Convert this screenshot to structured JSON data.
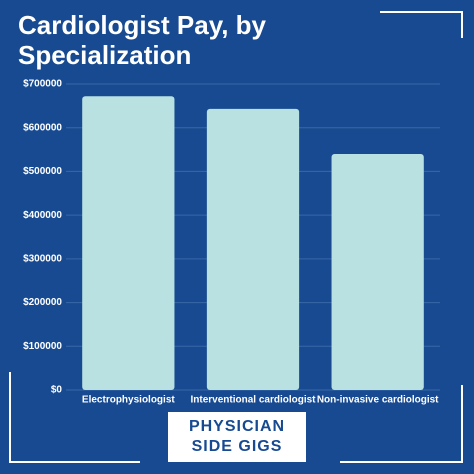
{
  "chart_data": {
    "type": "bar",
    "title": "Cardiologist Pay, by Specialization",
    "categories": [
      "Electrophysiologist",
      "Interventional cardiologist",
      "Non-invasive cardiologist"
    ],
    "values": [
      672000,
      643000,
      540000
    ],
    "color": "#b9e1e1",
    "ylim": [
      0,
      700000
    ],
    "yticks": [
      {
        "value": 0,
        "label": "$0"
      },
      {
        "value": 100000,
        "label": "$100000"
      },
      {
        "value": 200000,
        "label": "$200000"
      },
      {
        "value": 300000,
        "label": "$300000"
      },
      {
        "value": 400000,
        "label": "$400000"
      },
      {
        "value": 500000,
        "label": "$500000"
      },
      {
        "value": 600000,
        "label": "$600000"
      },
      {
        "value": 700000,
        "label": "$700000"
      }
    ],
    "grid": true
  },
  "footer": "PHYSICIAN SIDE GIGS"
}
